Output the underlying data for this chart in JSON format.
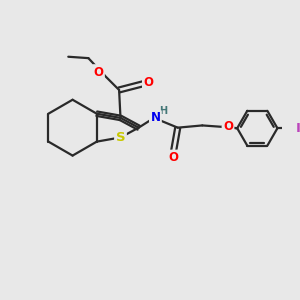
{
  "bg_color": "#e8e8e8",
  "bond_color": "#2a2a2a",
  "bond_width": 1.6,
  "atom_colors": {
    "O": "#ff0000",
    "S": "#c8c800",
    "N": "#0000ee",
    "I": "#bb44bb",
    "H": "#447777",
    "C": "#2a2a2a"
  },
  "font_size": 8.5,
  "fig_size": [
    3.0,
    3.0
  ],
  "dpi": 100,
  "xlim": [
    0,
    10
  ],
  "ylim": [
    0,
    10
  ]
}
